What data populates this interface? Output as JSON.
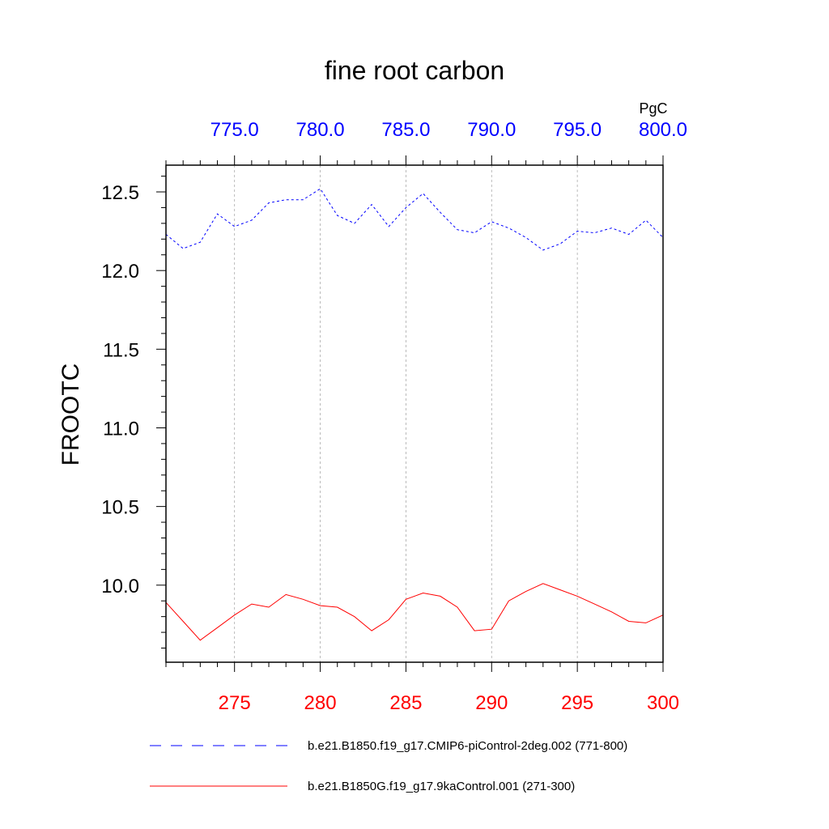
{
  "chart_data": {
    "type": "line",
    "title": "fine root carbon",
    "ylabel": "FROOTC",
    "units": "PgC",
    "ylim": [
      9.51,
      12.67
    ],
    "yticks": [
      "10.0",
      "10.5",
      "11.0",
      "11.5",
      "12.0",
      "12.5"
    ],
    "ytick_values": [
      10.0,
      10.5,
      11.0,
      11.5,
      12.0,
      12.5
    ],
    "grid": "vertical dashed",
    "legend_position": "bottom",
    "x_bottom": {
      "range": [
        271,
        300
      ],
      "ticks": [
        275,
        280,
        285,
        290,
        295,
        300
      ],
      "tick_labels": [
        "275",
        "280",
        "285",
        "290",
        "295",
        "300"
      ],
      "color": "#ff0000"
    },
    "x_top": {
      "range": [
        771,
        800
      ],
      "ticks": [
        775,
        780,
        785,
        790,
        795,
        800
      ],
      "tick_labels": [
        "775.0",
        "780.0",
        "785.0",
        "790.0",
        "795.0",
        "800.0"
      ],
      "color": "#0000ff"
    },
    "series": [
      {
        "name": "b.e21.B1850.f19_g17.CMIP6-piControl-2deg.002 (771-800)",
        "axis": "top",
        "color": "#0000ff",
        "dash": "dashed",
        "x": [
          771,
          772,
          773,
          774,
          775,
          776,
          777,
          778,
          779,
          780,
          781,
          782,
          783,
          784,
          785,
          786,
          787,
          788,
          789,
          790,
          791,
          792,
          793,
          794,
          795,
          796,
          797,
          798,
          799,
          800
        ],
        "values": [
          12.23,
          12.14,
          12.18,
          12.36,
          12.28,
          12.32,
          12.43,
          12.45,
          12.45,
          12.52,
          12.35,
          12.3,
          12.42,
          12.28,
          12.4,
          12.49,
          12.37,
          12.26,
          12.24,
          12.31,
          12.27,
          12.21,
          12.13,
          12.17,
          12.25,
          12.24,
          12.27,
          12.23,
          12.32,
          12.21
        ]
      },
      {
        "name": "b.e21.B1850G.f19_g17.9kaControl.001 (271-300)",
        "axis": "bottom",
        "color": "#ff0000",
        "dash": "solid",
        "x": [
          271,
          272,
          273,
          274,
          275,
          276,
          277,
          278,
          279,
          280,
          281,
          282,
          283,
          284,
          285,
          286,
          287,
          288,
          289,
          290,
          291,
          292,
          293,
          294,
          295,
          296,
          297,
          298,
          299,
          300
        ],
        "values": [
          9.89,
          9.77,
          9.65,
          9.73,
          9.81,
          9.88,
          9.86,
          9.94,
          9.91,
          9.87,
          9.86,
          9.8,
          9.71,
          9.78,
          9.91,
          9.95,
          9.93,
          9.86,
          9.71,
          9.72,
          9.9,
          9.96,
          10.01,
          9.97,
          9.93,
          9.88,
          9.83,
          9.77,
          9.76,
          9.81
        ]
      }
    ]
  }
}
